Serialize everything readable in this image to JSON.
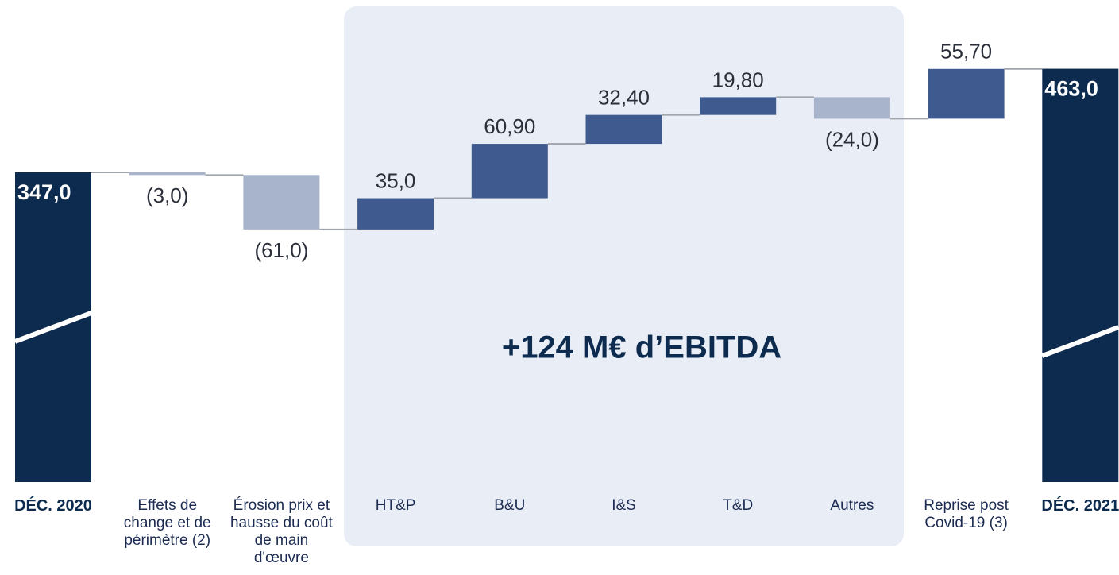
{
  "chart_data": {
    "type": "waterfall",
    "annotation": "+124 M€ d’EBITDA",
    "categories": [
      "DÉC. 2020",
      "Effets de change et de périmètre (2)",
      "Érosion prix et hausse du coût de main d'œuvre",
      "HT&P",
      "B&U",
      "I&S",
      "T&D",
      "Autres",
      "Reprise post Covid-19 (3)",
      "DÉC. 2021"
    ],
    "measure": [
      "absolute",
      "relative",
      "relative",
      "relative",
      "relative",
      "relative",
      "relative",
      "relative",
      "relative",
      "absolute"
    ],
    "values": [
      347,
      -3,
      -61,
      35,
      60.9,
      32.4,
      19.8,
      -24,
      55.7,
      463
    ],
    "value_labels": [
      "347,0",
      "(3,0)",
      "(61,0)",
      "35,0",
      "60,90",
      "32,40",
      "19,80",
      "(24,0)",
      "55,70",
      "463,0"
    ],
    "colors": {
      "total": "#0d2b4e",
      "increase": "#3e5a8e",
      "decrease": "#a8b3cc"
    },
    "ylim": [
      0,
      540
    ]
  }
}
